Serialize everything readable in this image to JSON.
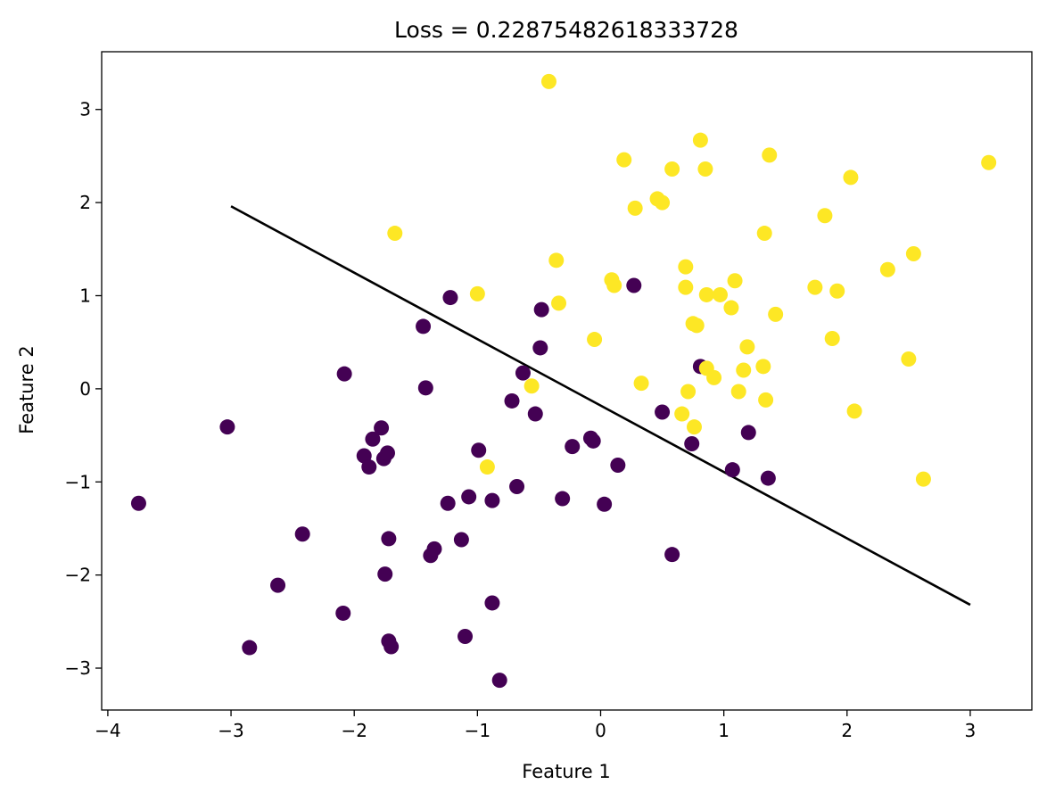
{
  "chart_data": {
    "type": "scatter",
    "title": "Loss = 0.22875482618333728",
    "xlabel": "Feature 1",
    "ylabel": "Feature 2",
    "xlim": [
      -4.05,
      3.5
    ],
    "ylim": [
      -3.45,
      3.62
    ],
    "xticks": [
      -4,
      -3,
      -2,
      -1,
      0,
      1,
      2,
      3
    ],
    "yticks": [
      -3,
      -2,
      -1,
      0,
      1,
      2,
      3
    ],
    "xtick_labels": [
      "−4",
      "−3",
      "−2",
      "−1",
      "0",
      "1",
      "2",
      "3"
    ],
    "ytick_labels": [
      "−3",
      "−2",
      "−1",
      "0",
      "1",
      "2",
      "3"
    ],
    "grid": false,
    "colors": {
      "class0": "#440154",
      "class1": "#fde725",
      "line": "#000000"
    },
    "decision_boundary": {
      "x": [
        -3.0,
        3.0
      ],
      "y": [
        1.96,
        -2.32
      ]
    },
    "series": [
      {
        "points": [
          [
            -3.75,
            -1.23
          ],
          [
            -3.03,
            -0.41
          ],
          [
            -2.85,
            -2.78
          ],
          [
            -2.62,
            -2.11
          ],
          [
            -2.42,
            -1.56
          ],
          [
            -2.09,
            -2.41
          ],
          [
            -2.08,
            0.16
          ],
          [
            -1.92,
            -0.72
          ],
          [
            -1.88,
            -0.84
          ],
          [
            -1.85,
            -0.54
          ],
          [
            -1.78,
            -0.42
          ],
          [
            -1.76,
            -0.75
          ],
          [
            -1.73,
            -0.69
          ],
          [
            -1.75,
            -1.99
          ],
          [
            -1.72,
            -1.61
          ],
          [
            -1.72,
            -2.71
          ],
          [
            -1.7,
            -2.77
          ],
          [
            -1.44,
            0.67
          ],
          [
            -1.42,
            0.01
          ],
          [
            -1.38,
            -1.79
          ],
          [
            -1.35,
            -1.72
          ],
          [
            -1.22,
            0.98
          ],
          [
            -1.24,
            -1.23
          ],
          [
            -1.13,
            -1.62
          ],
          [
            -1.1,
            -2.66
          ],
          [
            -1.07,
            -1.16
          ],
          [
            -0.99,
            -0.66
          ],
          [
            -0.88,
            -1.2
          ],
          [
            -0.88,
            -2.3
          ],
          [
            -0.82,
            -3.13
          ],
          [
            -0.72,
            -0.13
          ],
          [
            -0.68,
            -1.05
          ],
          [
            -0.63,
            0.17
          ],
          [
            -0.53,
            -0.27
          ],
          [
            -0.49,
            0.44
          ],
          [
            -0.48,
            0.85
          ],
          [
            -0.31,
            -1.18
          ],
          [
            -0.23,
            -0.62
          ],
          [
            -0.08,
            -0.53
          ],
          [
            -0.06,
            -0.56
          ],
          [
            0.03,
            -1.24
          ],
          [
            0.14,
            -0.82
          ],
          [
            0.27,
            1.11
          ],
          [
            0.5,
            -0.25
          ],
          [
            0.58,
            -1.78
          ],
          [
            0.74,
            -0.59
          ],
          [
            0.81,
            0.24
          ],
          [
            1.07,
            -0.87
          ],
          [
            1.2,
            -0.47
          ],
          [
            1.36,
            -0.96
          ]
        ]
      },
      {
        "points": [
          [
            -0.42,
            3.3
          ],
          [
            -1.67,
            1.67
          ],
          [
            -1.0,
            1.02
          ],
          [
            -0.36,
            1.38
          ],
          [
            -0.34,
            0.92
          ],
          [
            -0.56,
            0.03
          ],
          [
            -0.92,
            -0.84
          ],
          [
            -0.05,
            0.53
          ],
          [
            0.09,
            1.17
          ],
          [
            0.11,
            1.11
          ],
          [
            0.19,
            2.46
          ],
          [
            0.28,
            1.94
          ],
          [
            0.33,
            0.06
          ],
          [
            0.46,
            2.04
          ],
          [
            0.5,
            2.0
          ],
          [
            0.58,
            2.36
          ],
          [
            0.66,
            -0.27
          ],
          [
            0.69,
            1.31
          ],
          [
            0.69,
            1.09
          ],
          [
            0.71,
            -0.03
          ],
          [
            0.75,
            0.7
          ],
          [
            0.76,
            -0.41
          ],
          [
            0.78,
            0.68
          ],
          [
            0.81,
            2.67
          ],
          [
            0.85,
            2.36
          ],
          [
            0.86,
            0.22
          ],
          [
            0.86,
            1.01
          ],
          [
            0.92,
            0.12
          ],
          [
            0.97,
            1.01
          ],
          [
            1.06,
            0.87
          ],
          [
            1.09,
            1.16
          ],
          [
            1.12,
            -0.03
          ],
          [
            1.16,
            0.2
          ],
          [
            1.19,
            0.45
          ],
          [
            1.32,
            0.24
          ],
          [
            1.33,
            1.67
          ],
          [
            1.34,
            -0.12
          ],
          [
            1.37,
            2.51
          ],
          [
            1.42,
            0.8
          ],
          [
            1.74,
            1.09
          ],
          [
            1.82,
            1.86
          ],
          [
            1.88,
            0.54
          ],
          [
            1.92,
            1.05
          ],
          [
            2.03,
            2.27
          ],
          [
            2.06,
            -0.24
          ],
          [
            2.33,
            1.28
          ],
          [
            2.5,
            0.32
          ],
          [
            2.54,
            1.45
          ],
          [
            2.62,
            -0.97
          ],
          [
            3.15,
            2.43
          ]
        ]
      }
    ]
  }
}
